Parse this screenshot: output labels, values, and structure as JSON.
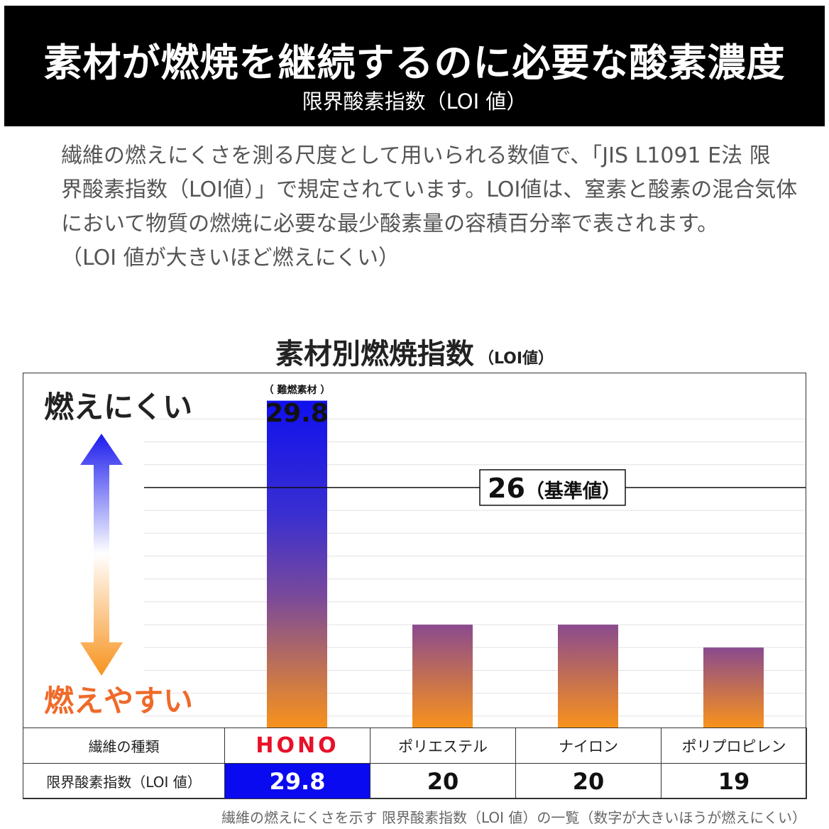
{
  "banner": {
    "title": "素材が燃焼を継続するのに必要な酸素濃度",
    "subtitle": "限界酸素指数（LOI 値）"
  },
  "description": {
    "lines": [
      "繊維の燃えにくさを測る尺度として用いられる数値で、「JIS L1091 E法 限",
      "界酸素指数（LOI値）」で規定されています。LOI値は、窒素と酸素の混合気体",
      "において物質の燃焼に必要な最少酸素量の容積百分率で表されます。",
      "（LOI 値が大きいほど燃えにくい）"
    ]
  },
  "chart_title": {
    "main": "素材別燃焼指数",
    "unit": "（LOI値）"
  },
  "chart_data": {
    "type": "bar",
    "categories": [
      "HONO",
      "ポリエステル",
      "ナイロン",
      "ポリプロピレン"
    ],
    "values": [
      29.8,
      20,
      20,
      19
    ],
    "ylim": [
      15.5,
      30.5
    ],
    "grid": true,
    "reference_line": {
      "value": 26,
      "label_num": "26",
      "label_text": "（基準値）"
    },
    "bar_annotation": {
      "index": 0,
      "note": "（ 難燃素材 ）",
      "value_label": "29.8"
    },
    "axis_hint": {
      "top": "燃えにくい",
      "bottom": "燃えやすい"
    }
  },
  "table": {
    "row1_label": "繊維の種類",
    "row2_label": "限界酸素指数（LOI 値）",
    "materials": [
      "HONO",
      "ポリエステル",
      "ナイロン",
      "ポリプロピレン"
    ],
    "values": [
      "29.8",
      "20",
      "20",
      "19"
    ]
  },
  "caption": "繊維の燃えにくさを示す 限界酸素指数（LOI 値）の一覧（数字が大きいほうが燃えにくい）",
  "colors": {
    "hono_bar": "#1010ee",
    "gradient_top": "#8a4a8e",
    "gradient_bottom": "#f8921c",
    "hint_top": "#222222",
    "hint_bottom": "#ef6a2a",
    "logo": "#e8102a",
    "highlight": "#0a0af0"
  }
}
